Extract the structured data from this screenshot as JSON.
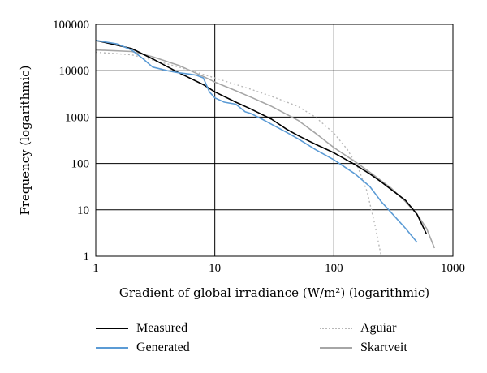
{
  "chart_data": {
    "type": "line",
    "xscale": "log",
    "yscale": "log",
    "xlim": [
      1,
      1000
    ],
    "ylim": [
      1,
      100000
    ],
    "x_ticks": [
      "1",
      "10",
      "100",
      "1000"
    ],
    "y_ticks": [
      "1",
      "10",
      "100",
      "1000",
      "10000",
      "100000"
    ],
    "xlabel": "Gradient of global irradiance (W/m²) (logarithmic)",
    "ylabel": "Frequency (logarithmic)",
    "grid": true,
    "legend_position": "bottom",
    "series": [
      {
        "name": "Measured",
        "color": "#000000",
        "dash": "solid",
        "x": [
          1,
          2,
          3,
          5,
          8,
          10,
          15,
          20,
          30,
          40,
          50,
          70,
          100,
          150,
          200,
          250,
          300,
          400,
          500,
          600
        ],
        "y": [
          45000,
          30000,
          18000,
          9000,
          5000,
          3500,
          2100,
          1500,
          900,
          550,
          400,
          260,
          170,
          95,
          60,
          40,
          28,
          16,
          8,
          3
        ]
      },
      {
        "name": "Generated",
        "color": "#5b9bd5",
        "dash": "solid",
        "x": [
          1,
          1.5,
          2,
          2.5,
          3,
          4,
          5,
          6,
          7,
          8,
          9,
          10,
          12,
          15,
          18,
          20,
          25,
          30,
          40,
          50,
          70,
          100,
          150,
          200,
          250,
          300,
          400,
          500
        ],
        "y": [
          45000,
          38000,
          28000,
          18000,
          12000,
          10000,
          9000,
          8500,
          8000,
          7000,
          3500,
          2600,
          2100,
          1900,
          1300,
          1200,
          900,
          700,
          470,
          340,
          200,
          120,
          60,
          32,
          15,
          9,
          4,
          2
        ]
      },
      {
        "name": "Aguiar",
        "color": "#b8b8b8",
        "dash": "dotted",
        "x": [
          1,
          2,
          3,
          5,
          10,
          20,
          30,
          50,
          70,
          100,
          130,
          160,
          190,
          220,
          250
        ],
        "y": [
          25000,
          22000,
          17000,
          12000,
          7000,
          4000,
          2800,
          1700,
          1000,
          450,
          200,
          80,
          25,
          5,
          1
        ]
      },
      {
        "name": "Skartveit",
        "color": "#a6a6a6",
        "dash": "solid",
        "x": [
          1,
          2,
          3,
          5,
          8,
          10,
          15,
          20,
          30,
          50,
          70,
          100,
          150,
          200,
          300,
          400,
          500,
          600,
          700
        ],
        "y": [
          28000,
          26000,
          20000,
          13000,
          7500,
          5700,
          3700,
          2700,
          1700,
          850,
          450,
          220,
          110,
          65,
          30,
          15,
          8,
          4,
          1.5
        ]
      }
    ]
  },
  "legend": {
    "measured": "Measured",
    "generated": "Generated",
    "aguiar": "Aguiar",
    "skartveit": "Skartveit"
  }
}
